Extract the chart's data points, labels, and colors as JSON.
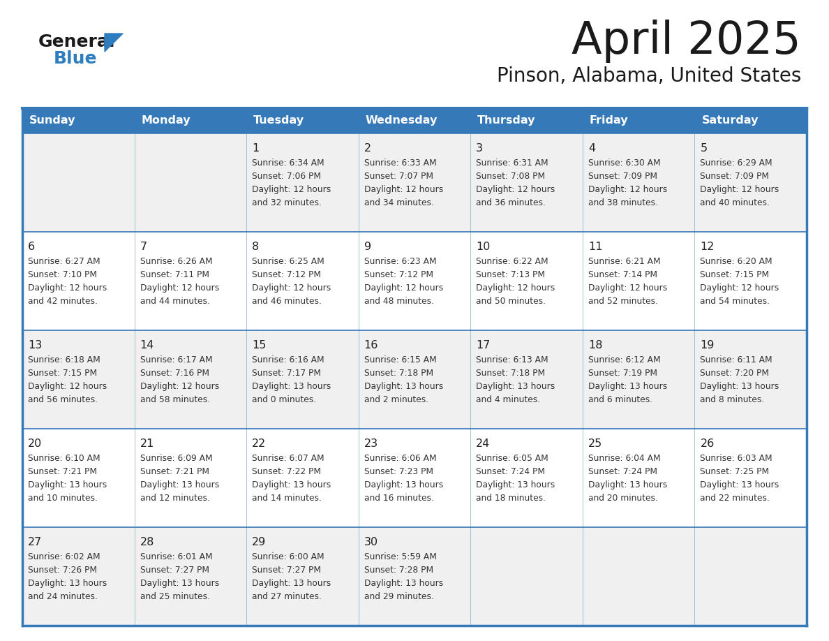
{
  "title": "April 2025",
  "subtitle": "Pinson, Alabama, United States",
  "header_bg": "#3579B8",
  "header_text_color": "#FFFFFF",
  "header_days": [
    "Sunday",
    "Monday",
    "Tuesday",
    "Wednesday",
    "Thursday",
    "Friday",
    "Saturday"
  ],
  "row_bg_light": "#F0F0F0",
  "row_bg_white": "#FFFFFF",
  "border_color": "#3579B8",
  "day_number_color": "#222222",
  "cell_text_color": "#333333",
  "logo_general_color": "#1A1A1A",
  "logo_blue_color": "#2E7DBE",
  "title_color": "#1A1A1A",
  "subtitle_color": "#1A1A1A",
  "weeks": [
    {
      "days": [
        {
          "day": null,
          "sunrise": null,
          "sunset": null,
          "daylight": null
        },
        {
          "day": null,
          "sunrise": null,
          "sunset": null,
          "daylight": null
        },
        {
          "day": "1",
          "sunrise": "6:34 AM",
          "sunset": "7:06 PM",
          "daylight": "12 hours\nand 32 minutes."
        },
        {
          "day": "2",
          "sunrise": "6:33 AM",
          "sunset": "7:07 PM",
          "daylight": "12 hours\nand 34 minutes."
        },
        {
          "day": "3",
          "sunrise": "6:31 AM",
          "sunset": "7:08 PM",
          "daylight": "12 hours\nand 36 minutes."
        },
        {
          "day": "4",
          "sunrise": "6:30 AM",
          "sunset": "7:09 PM",
          "daylight": "12 hours\nand 38 minutes."
        },
        {
          "day": "5",
          "sunrise": "6:29 AM",
          "sunset": "7:09 PM",
          "daylight": "12 hours\nand 40 minutes."
        }
      ]
    },
    {
      "days": [
        {
          "day": "6",
          "sunrise": "6:27 AM",
          "sunset": "7:10 PM",
          "daylight": "12 hours\nand 42 minutes."
        },
        {
          "day": "7",
          "sunrise": "6:26 AM",
          "sunset": "7:11 PM",
          "daylight": "12 hours\nand 44 minutes."
        },
        {
          "day": "8",
          "sunrise": "6:25 AM",
          "sunset": "7:12 PM",
          "daylight": "12 hours\nand 46 minutes."
        },
        {
          "day": "9",
          "sunrise": "6:23 AM",
          "sunset": "7:12 PM",
          "daylight": "12 hours\nand 48 minutes."
        },
        {
          "day": "10",
          "sunrise": "6:22 AM",
          "sunset": "7:13 PM",
          "daylight": "12 hours\nand 50 minutes."
        },
        {
          "day": "11",
          "sunrise": "6:21 AM",
          "sunset": "7:14 PM",
          "daylight": "12 hours\nand 52 minutes."
        },
        {
          "day": "12",
          "sunrise": "6:20 AM",
          "sunset": "7:15 PM",
          "daylight": "12 hours\nand 54 minutes."
        }
      ]
    },
    {
      "days": [
        {
          "day": "13",
          "sunrise": "6:18 AM",
          "sunset": "7:15 PM",
          "daylight": "12 hours\nand 56 minutes."
        },
        {
          "day": "14",
          "sunrise": "6:17 AM",
          "sunset": "7:16 PM",
          "daylight": "12 hours\nand 58 minutes."
        },
        {
          "day": "15",
          "sunrise": "6:16 AM",
          "sunset": "7:17 PM",
          "daylight": "13 hours\nand 0 minutes."
        },
        {
          "day": "16",
          "sunrise": "6:15 AM",
          "sunset": "7:18 PM",
          "daylight": "13 hours\nand 2 minutes."
        },
        {
          "day": "17",
          "sunrise": "6:13 AM",
          "sunset": "7:18 PM",
          "daylight": "13 hours\nand 4 minutes."
        },
        {
          "day": "18",
          "sunrise": "6:12 AM",
          "sunset": "7:19 PM",
          "daylight": "13 hours\nand 6 minutes."
        },
        {
          "day": "19",
          "sunrise": "6:11 AM",
          "sunset": "7:20 PM",
          "daylight": "13 hours\nand 8 minutes."
        }
      ]
    },
    {
      "days": [
        {
          "day": "20",
          "sunrise": "6:10 AM",
          "sunset": "7:21 PM",
          "daylight": "13 hours\nand 10 minutes."
        },
        {
          "day": "21",
          "sunrise": "6:09 AM",
          "sunset": "7:21 PM",
          "daylight": "13 hours\nand 12 minutes."
        },
        {
          "day": "22",
          "sunrise": "6:07 AM",
          "sunset": "7:22 PM",
          "daylight": "13 hours\nand 14 minutes."
        },
        {
          "day": "23",
          "sunrise": "6:06 AM",
          "sunset": "7:23 PM",
          "daylight": "13 hours\nand 16 minutes."
        },
        {
          "day": "24",
          "sunrise": "6:05 AM",
          "sunset": "7:24 PM",
          "daylight": "13 hours\nand 18 minutes."
        },
        {
          "day": "25",
          "sunrise": "6:04 AM",
          "sunset": "7:24 PM",
          "daylight": "13 hours\nand 20 minutes."
        },
        {
          "day": "26",
          "sunrise": "6:03 AM",
          "sunset": "7:25 PM",
          "daylight": "13 hours\nand 22 minutes."
        }
      ]
    },
    {
      "days": [
        {
          "day": "27",
          "sunrise": "6:02 AM",
          "sunset": "7:26 PM",
          "daylight": "13 hours\nand 24 minutes."
        },
        {
          "day": "28",
          "sunrise": "6:01 AM",
          "sunset": "7:27 PM",
          "daylight": "13 hours\nand 25 minutes."
        },
        {
          "day": "29",
          "sunrise": "6:00 AM",
          "sunset": "7:27 PM",
          "daylight": "13 hours\nand 27 minutes."
        },
        {
          "day": "30",
          "sunrise": "5:59 AM",
          "sunset": "7:28 PM",
          "daylight": "13 hours\nand 29 minutes."
        },
        {
          "day": null,
          "sunrise": null,
          "sunset": null,
          "daylight": null
        },
        {
          "day": null,
          "sunrise": null,
          "sunset": null,
          "daylight": null
        },
        {
          "day": null,
          "sunrise": null,
          "sunset": null,
          "daylight": null
        }
      ]
    }
  ]
}
